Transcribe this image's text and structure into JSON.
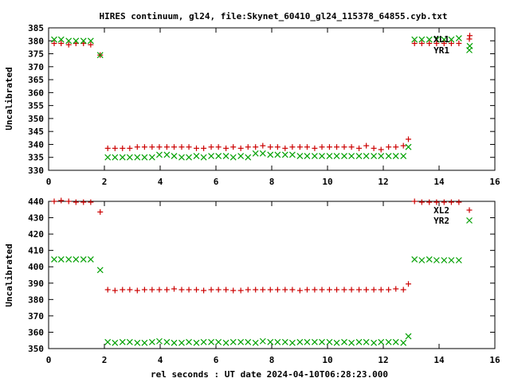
{
  "chart_data": [
    {
      "type": "scatter",
      "title": "HIRES continuum, gl24, file:Skynet_60410_gl24_115378_64855.cyb.txt",
      "ylabel": "Uncalibrated",
      "xlim": [
        0,
        16
      ],
      "ylim": [
        330,
        385
      ],
      "xticks": [
        0,
        2,
        4,
        6,
        8,
        10,
        12,
        14,
        16
      ],
      "yticks": [
        330,
        335,
        340,
        345,
        350,
        355,
        360,
        365,
        370,
        375,
        380,
        385
      ],
      "legend_position": "top-right",
      "series": [
        {
          "name": "XL1",
          "marker": "plus",
          "color": "#cc0000",
          "x": [
            0.2,
            0.45,
            0.72,
            0.98,
            1.25,
            1.51,
            1.85,
            2.12,
            2.38,
            2.65,
            2.91,
            3.18,
            3.44,
            3.71,
            3.97,
            4.24,
            4.5,
            4.77,
            5.03,
            5.3,
            5.56,
            5.83,
            6.09,
            6.36,
            6.62,
            6.89,
            7.15,
            7.42,
            7.68,
            7.95,
            8.21,
            8.48,
            8.74,
            9.01,
            9.27,
            9.54,
            9.8,
            10.07,
            10.33,
            10.6,
            10.86,
            11.13,
            11.39,
            11.66,
            11.92,
            12.19,
            12.45,
            12.72,
            12.9,
            13.12,
            13.38,
            13.65,
            13.91,
            14.18,
            14.44,
            14.71,
            15.1
          ],
          "y": [
            379,
            379,
            378.5,
            379,
            379,
            378.5,
            374.5,
            338.5,
            338.5,
            338.5,
            338.5,
            339,
            339,
            339,
            339,
            339,
            339,
            339,
            339,
            338.5,
            338.5,
            339,
            339,
            338.5,
            339,
            338.5,
            339,
            339,
            339.5,
            339,
            339,
            338.5,
            339,
            339,
            339,
            338.5,
            339,
            339,
            339,
            339,
            339,
            338.5,
            339.5,
            338.5,
            338,
            339,
            339,
            339.5,
            342,
            379,
            379,
            379,
            379,
            379,
            379,
            379,
            382
          ]
        },
        {
          "name": "YR1",
          "marker": "cross",
          "color": "#00a000",
          "x": [
            0.2,
            0.45,
            0.72,
            0.98,
            1.25,
            1.51,
            1.85,
            2.12,
            2.38,
            2.65,
            2.91,
            3.18,
            3.44,
            3.71,
            3.97,
            4.24,
            4.5,
            4.77,
            5.03,
            5.3,
            5.56,
            5.83,
            6.09,
            6.36,
            6.62,
            6.89,
            7.15,
            7.42,
            7.68,
            7.95,
            8.21,
            8.48,
            8.74,
            9.01,
            9.27,
            9.54,
            9.8,
            10.07,
            10.33,
            10.6,
            10.86,
            11.13,
            11.39,
            11.66,
            11.92,
            12.19,
            12.45,
            12.72,
            12.9,
            13.12,
            13.38,
            13.65,
            13.91,
            14.18,
            14.44,
            14.71,
            15.1
          ],
          "y": [
            380.5,
            380.5,
            380,
            380,
            380,
            380,
            374.5,
            335,
            335,
            335,
            335,
            335,
            335,
            335,
            336,
            336,
            335.5,
            335,
            335,
            335.5,
            335,
            335.5,
            335.5,
            335.5,
            335,
            335.5,
            335,
            336.5,
            336.5,
            336,
            336,
            336,
            336,
            335.5,
            335.5,
            335.5,
            335.5,
            335.5,
            335.5,
            335.5,
            335.5,
            335.5,
            335.5,
            335.5,
            335.5,
            335.5,
            335.5,
            335.5,
            339,
            380.5,
            380.5,
            380.5,
            380.5,
            380.5,
            380.5,
            381,
            378
          ]
        }
      ]
    },
    {
      "type": "scatter",
      "xlabel": "rel seconds : UT date 2024-04-10T06:28:23.000",
      "ylabel": "Uncalibrated",
      "xlim": [
        0,
        16
      ],
      "ylim": [
        350,
        440
      ],
      "xticks": [
        0,
        2,
        4,
        6,
        8,
        10,
        12,
        14,
        16
      ],
      "yticks": [
        350,
        360,
        370,
        380,
        390,
        400,
        410,
        420,
        430,
        440
      ],
      "legend_position": "top-right",
      "series": [
        {
          "name": "XL2",
          "marker": "plus",
          "color": "#cc0000",
          "x": [
            0.2,
            0.45,
            0.72,
            0.98,
            1.25,
            1.51,
            1.85,
            2.12,
            2.38,
            2.65,
            2.91,
            3.18,
            3.44,
            3.71,
            3.97,
            4.24,
            4.5,
            4.77,
            5.03,
            5.3,
            5.56,
            5.83,
            6.09,
            6.36,
            6.62,
            6.89,
            7.15,
            7.42,
            7.68,
            7.95,
            8.21,
            8.48,
            8.74,
            9.01,
            9.27,
            9.54,
            9.8,
            10.07,
            10.33,
            10.6,
            10.86,
            11.13,
            11.39,
            11.66,
            11.92,
            12.19,
            12.45,
            12.72,
            12.9,
            13.12,
            13.38,
            13.65,
            13.91,
            14.18,
            14.44,
            14.71
          ],
          "y": [
            440,
            440.5,
            440,
            439.5,
            439.5,
            439.5,
            433.5,
            386,
            385.5,
            386,
            386,
            385.5,
            386,
            386,
            386,
            386,
            386.5,
            386,
            386,
            386,
            385.5,
            386,
            386,
            386,
            385.5,
            385.5,
            386,
            386,
            386,
            386,
            386,
            386,
            386,
            385.5,
            386,
            386,
            386,
            386,
            386,
            386,
            386,
            386,
            386,
            386,
            386,
            386,
            386.5,
            386,
            389.5,
            440,
            439.5,
            439.5,
            439.5,
            439.5,
            439.5,
            439.5
          ]
        },
        {
          "name": "YR2",
          "marker": "cross",
          "color": "#00a000",
          "x": [
            0.2,
            0.45,
            0.72,
            0.98,
            1.25,
            1.51,
            1.85,
            2.12,
            2.38,
            2.65,
            2.91,
            3.18,
            3.44,
            3.71,
            3.97,
            4.24,
            4.5,
            4.77,
            5.03,
            5.3,
            5.56,
            5.83,
            6.09,
            6.36,
            6.62,
            6.89,
            7.15,
            7.42,
            7.68,
            7.95,
            8.21,
            8.48,
            8.74,
            9.01,
            9.27,
            9.54,
            9.8,
            10.07,
            10.33,
            10.6,
            10.86,
            11.13,
            11.39,
            11.66,
            11.92,
            12.19,
            12.45,
            12.72,
            12.9,
            13.12,
            13.38,
            13.65,
            13.91,
            14.18,
            14.44,
            14.71
          ],
          "y": [
            404.5,
            404.5,
            404.5,
            404.5,
            404.5,
            404.5,
            398,
            354,
            353.5,
            354,
            354,
            353.5,
            353.5,
            354,
            354.5,
            354,
            353.5,
            353.5,
            354,
            353.5,
            354,
            354,
            354,
            353.5,
            354,
            354,
            354,
            353.5,
            354.5,
            354,
            354,
            354,
            353.5,
            354,
            354,
            354,
            354,
            354,
            353.5,
            354,
            353.5,
            354,
            354,
            353.5,
            354,
            354,
            354,
            353.5,
            357.5,
            404.5,
            404,
            404.5,
            404,
            404,
            404,
            404
          ]
        }
      ]
    }
  ]
}
